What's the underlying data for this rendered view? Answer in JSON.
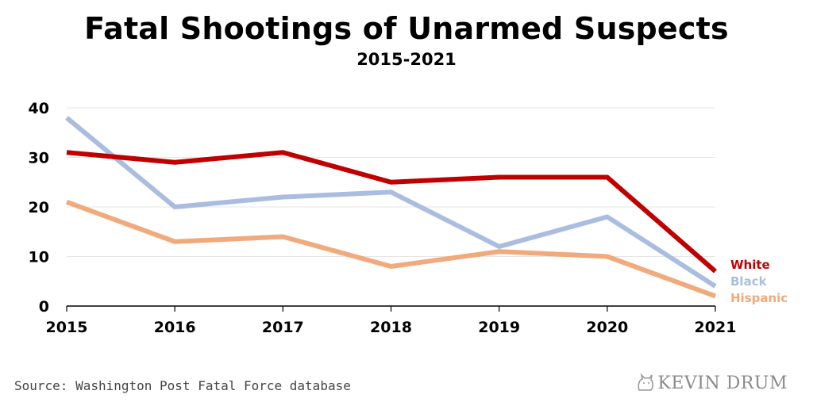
{
  "title": "Fatal Shootings of Unarmed Suspects",
  "subtitle": "2015-2021",
  "source": "Source: Washington Post Fatal Force database",
  "brand": "KEVIN DRUM",
  "chart_data": {
    "type": "line",
    "title": "Fatal Shootings of Unarmed Suspects",
    "subtitle": "2015-2021",
    "x": [
      2015,
      2016,
      2017,
      2018,
      2019,
      2020,
      2021
    ],
    "y_ticks": [
      0,
      10,
      20,
      30,
      40
    ],
    "ylim": [
      0,
      40
    ],
    "grid": true,
    "series": [
      {
        "name": "White",
        "color": "#c00000",
        "values": [
          31,
          29,
          31,
          25,
          26,
          26,
          7
        ]
      },
      {
        "name": "Black",
        "color": "#aabde0",
        "values": [
          38,
          20,
          22,
          23,
          12,
          18,
          4
        ]
      },
      {
        "name": "Hispanic",
        "color": "#f0aa7c",
        "values": [
          21,
          13,
          14,
          8,
          11,
          10,
          2
        ]
      }
    ]
  }
}
